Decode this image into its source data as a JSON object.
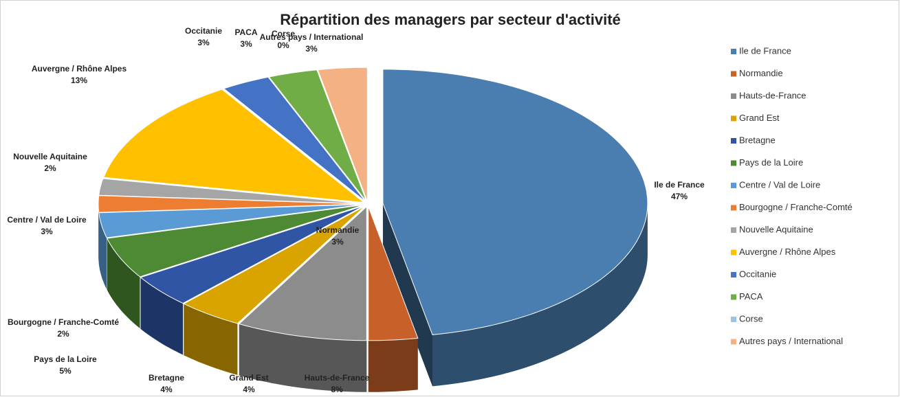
{
  "chart_data": {
    "type": "pie3d",
    "title": "Répartition des managers par secteur d'activité",
    "categories": [
      "Ile de France",
      "Normandie",
      "Hauts-de-France",
      "Grand Est",
      "Bretagne",
      "Pays de la Loire",
      "Centre / Val de Loire",
      "Bourgogne / Franche-Comté",
      "Nouvelle Aquitaine",
      "Auvergne / Rhône Alpes",
      "Occitanie",
      "PACA",
      "Corse",
      "Autres pays / International"
    ],
    "values": [
      47,
      3,
      8,
      4,
      4,
      5,
      3,
      2,
      2,
      13,
      3,
      3,
      0,
      3
    ],
    "value_labels": [
      "47%",
      "3%",
      "8%",
      "4%",
      "4%",
      "5%",
      "3%",
      "2%",
      "2%",
      "13%",
      "3%",
      "3%",
      "0%",
      "3%"
    ],
    "colors": [
      "#4a7eb0",
      "#c8602a",
      "#8c8c8c",
      "#d9a300",
      "#2f55a4",
      "#4e8a34",
      "#5b9bd5",
      "#ed7d31",
      "#a5a5a5",
      "#ffc000",
      "#4472c4",
      "#70ad47",
      "#9dc3e6",
      "#f4b183"
    ],
    "legend": "right"
  }
}
